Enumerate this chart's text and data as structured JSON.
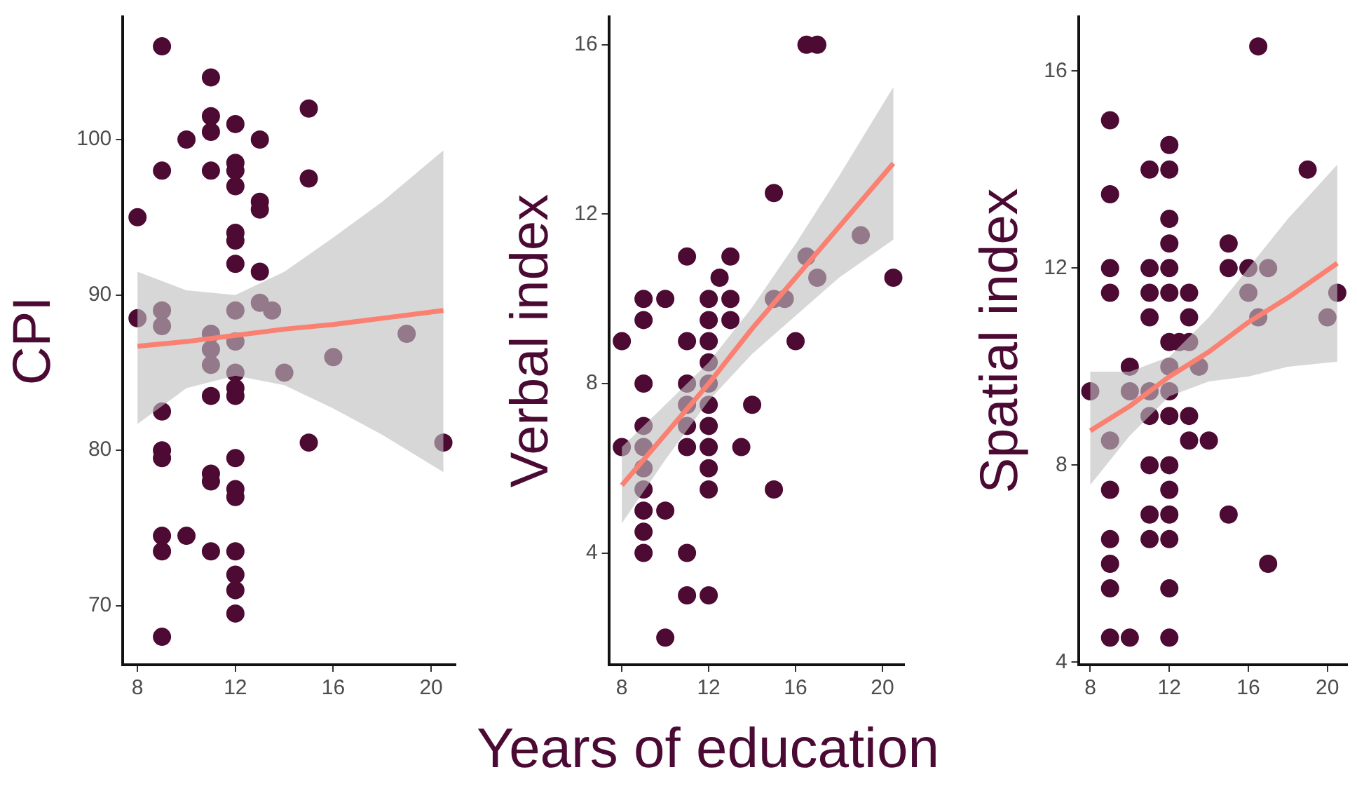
{
  "chart_data": [
    {
      "type": "scatter",
      "ylabel": "CPI",
      "xlim": [
        7.4,
        21
      ],
      "ylim": [
        66.2,
        107.9
      ],
      "xticks": [
        8,
        12,
        16,
        20
      ],
      "yticks": [
        70,
        80,
        90,
        100
      ],
      "series": [
        {
          "marker": "circle",
          "color": "#4d0a33",
          "x": [
            9,
            11,
            15,
            11,
            11,
            12,
            10,
            13,
            9,
            11,
            12,
            12,
            12,
            15,
            13,
            13,
            8,
            12,
            12,
            12,
            13,
            8,
            9,
            9,
            12,
            13,
            13.5,
            11,
            11,
            12,
            11,
            12,
            14,
            16,
            19,
            11,
            12,
            12,
            9,
            15,
            20.5,
            9,
            9,
            11,
            11,
            12,
            12,
            12,
            9,
            10,
            9,
            11,
            12,
            12,
            12,
            12,
            9
          ],
          "values": [
            106,
            104,
            102,
            101.5,
            100.5,
            101,
            100,
            100,
            98,
            98,
            98.5,
            98,
            97,
            97.5,
            96,
            95.5,
            95,
            94,
            93.5,
            92,
            91.5,
            88.5,
            89,
            88,
            89,
            89.5,
            89,
            87.5,
            86.5,
            87,
            85.5,
            85,
            85,
            86,
            87.5,
            83.5,
            84,
            83.5,
            82.5,
            80.5,
            80.5,
            80,
            79.5,
            78.5,
            78,
            79.5,
            77.5,
            77,
            74.5,
            74.5,
            73.5,
            73.5,
            73.5,
            72,
            71,
            69.5,
            68
          ]
        },
        {
          "type": "line",
          "marker": "none",
          "color": "#fa8072",
          "x": [
            8,
            10,
            12,
            14,
            16,
            18,
            20.5
          ],
          "values": [
            86.7,
            87,
            87.4,
            87.8,
            88.1,
            88.5,
            89
          ],
          "lower": [
            81.7,
            84,
            84.8,
            84.2,
            82.7,
            81,
            78.6
          ],
          "upper": [
            91.5,
            90.3,
            90,
            91.5,
            93.7,
            96,
            99.3
          ]
        }
      ]
    },
    {
      "type": "scatter",
      "ylabel": "Verbal index",
      "xlabel": "Years of education",
      "xlim": [
        7.4,
        21
      ],
      "ylim": [
        1.36,
        16.66
      ],
      "xticks": [
        8,
        12,
        16,
        20
      ],
      "yticks": [
        4,
        8,
        12,
        16
      ],
      "series": [
        {
          "marker": "circle",
          "color": "#4d0a33",
          "x": [
            16.5,
            17,
            15,
            11,
            13,
            16.5,
            12.5,
            17,
            20.5,
            19,
            9,
            10,
            12,
            13,
            15,
            15.5,
            9,
            12,
            13,
            8,
            11,
            12,
            16,
            12,
            9,
            11,
            12,
            11,
            12,
            14,
            9,
            11,
            12,
            8,
            9,
            11,
            12,
            13.5,
            9,
            12,
            9,
            12,
            15,
            9,
            10,
            9,
            9,
            11,
            11,
            12,
            10
          ],
          "values": [
            16,
            16,
            12.5,
            11,
            11,
            11,
            10.5,
            10.5,
            10.5,
            11.5,
            10,
            10,
            10,
            10,
            10,
            10,
            9.5,
            9.5,
            9.5,
            9,
            9,
            9,
            9,
            8.5,
            8,
            8,
            8,
            7.5,
            7.5,
            7.5,
            7,
            7,
            7,
            6.5,
            6.5,
            6.5,
            6.5,
            6.5,
            6,
            6,
            5.5,
            5.5,
            5.5,
            5,
            5,
            4.5,
            4,
            4,
            3,
            3,
            2
          ]
        },
        {
          "type": "line",
          "marker": "none",
          "color": "#fa8072",
          "x": [
            8,
            10,
            12,
            14,
            16,
            18,
            20.5
          ],
          "values": [
            5.6,
            6.8,
            8,
            9.3,
            10.5,
            11.7,
            13.2
          ],
          "lower": [
            4.7,
            6.2,
            7.6,
            8.7,
            9.6,
            10.5,
            11.4
          ],
          "upper": [
            6.5,
            7.5,
            8.5,
            9.8,
            11.3,
            12.9,
            15
          ]
        }
      ]
    },
    {
      "type": "scatter",
      "ylabel": "Spatial index",
      "xlim": [
        7.4,
        21
      ],
      "ylim": [
        3.95,
        17.1
      ],
      "xticks": [
        8,
        12,
        16,
        20
      ],
      "yticks": [
        4,
        8,
        12,
        16
      ],
      "series": [
        {
          "marker": "circle",
          "color": "#4d0a33",
          "x": [
            16.5,
            9,
            12,
            11,
            12,
            19,
            9,
            12,
            12,
            15,
            9,
            11,
            12,
            15,
            16,
            17,
            9,
            11,
            12,
            13,
            16,
            20.5,
            11,
            13,
            16.5,
            20,
            12,
            12.5,
            13,
            10,
            12,
            13.5,
            8,
            10,
            11,
            12,
            11,
            12,
            13,
            9,
            13,
            14,
            11,
            12,
            9,
            12,
            11,
            12,
            15,
            9,
            11,
            12,
            9,
            17,
            9,
            12,
            9,
            10,
            12
          ],
          "values": [
            16.5,
            15,
            14.5,
            14,
            14,
            14,
            13.5,
            13,
            12.5,
            12.5,
            12,
            12,
            12,
            12,
            12,
            12,
            11.5,
            11.5,
            11.5,
            11.5,
            11.5,
            11.5,
            11,
            11,
            11,
            11,
            10.5,
            10.5,
            10.5,
            10,
            10,
            10,
            9.5,
            9.5,
            9.5,
            9.5,
            9,
            9,
            9,
            8.5,
            8.5,
            8.5,
            8,
            8,
            7.5,
            7.5,
            7,
            7,
            7,
            6.5,
            6.5,
            6.5,
            6,
            6,
            5.5,
            5.5,
            4.5,
            4.5,
            4.5
          ]
        },
        {
          "type": "line",
          "marker": "none",
          "color": "#fa8072",
          "x": [
            8,
            10,
            12,
            14,
            16,
            18,
            20.5
          ],
          "values": [
            8.7,
            9.2,
            9.8,
            10.3,
            10.9,
            11.4,
            12.1
          ],
          "lower": [
            7.6,
            8.6,
            9.4,
            9.7,
            9.8,
            10,
            10.1
          ],
          "upper": [
            9.9,
            9.9,
            10.2,
            11,
            12,
            13,
            14.1
          ]
        }
      ]
    }
  ]
}
